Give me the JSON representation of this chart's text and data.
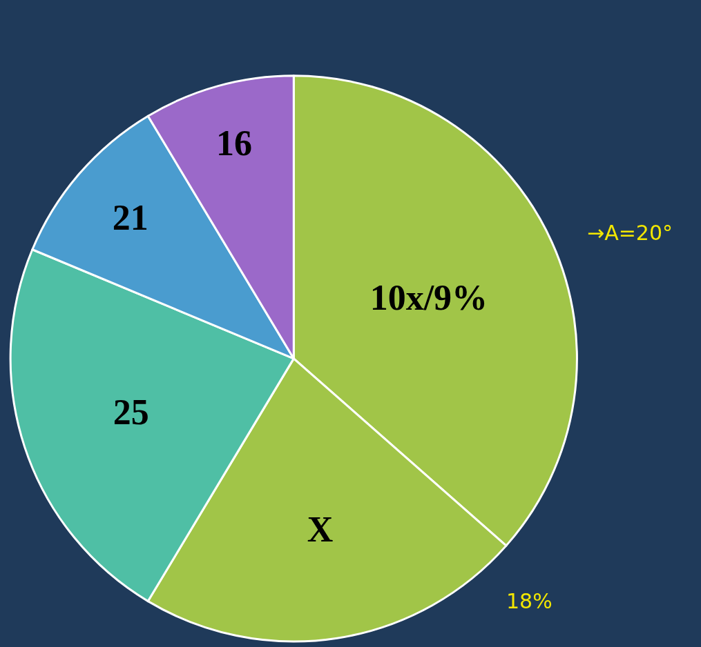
{
  "chart_data": {
    "type": "pie",
    "categories": [
      "10x/9%",
      "X",
      "25",
      "21",
      "16"
    ],
    "values": [
      36.5,
      22.1,
      22.7,
      10.1,
      8.6
    ],
    "colors": [
      "#a1c548",
      "#a1c548",
      "#4fbfa5",
      "#4a9ccf",
      "#9b69c9"
    ],
    "annotations": [
      "→A=20°",
      "18%"
    ],
    "legend": false
  }
}
